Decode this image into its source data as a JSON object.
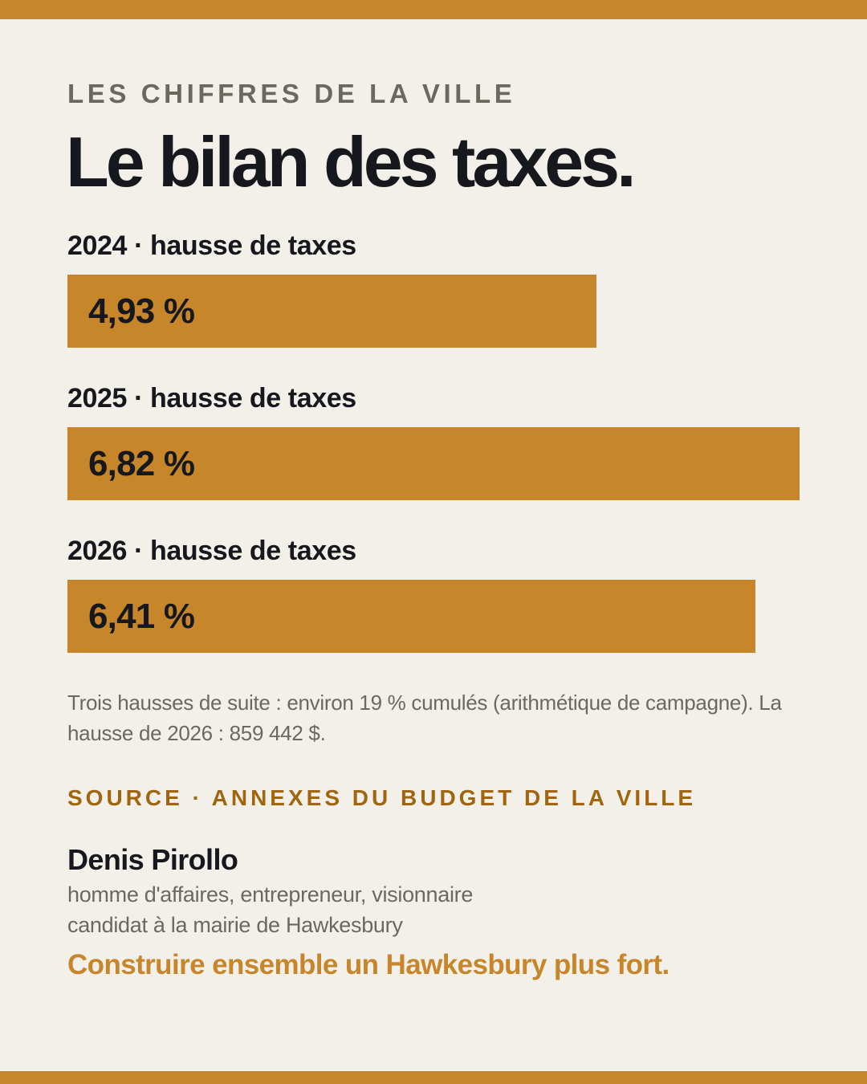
{
  "colors": {
    "accent": "#c8862b",
    "ink": "#16181d",
    "muted": "#6b685f",
    "source": "#a0650f",
    "background": "#f3f0ea"
  },
  "header": {
    "kicker": "LES CHIFFRES DE LA VILLE",
    "title": "Le bilan des taxes."
  },
  "chart_data": {
    "type": "bar",
    "orientation": "horizontal",
    "categories": [
      "2024 · hausse de taxes",
      "2025 · hausse de taxes",
      "2026 · hausse de taxes"
    ],
    "values": [
      4.93,
      6.82,
      6.41
    ],
    "value_labels": [
      "4,93 %",
      "6,82 %",
      "6,41 %"
    ],
    "unit": "%",
    "xlim": [
      0,
      6.82
    ],
    "grid": false,
    "legend": "none"
  },
  "note": "Trois hausses de suite : environ 19 % cumulés (arithmétique de campagne). La hausse de 2026 : 859 442 $.",
  "source": "SOURCE · ANNEXES DU BUDGET DE LA VILLE",
  "footer": {
    "candidate_name": "Denis Pirollo",
    "role_line_1": "homme d'affaires, entrepreneur, visionnaire",
    "role_line_2": "candidat à la mairie de Hawkesbury",
    "slogan": "Construire ensemble un Hawkesbury plus fort."
  }
}
